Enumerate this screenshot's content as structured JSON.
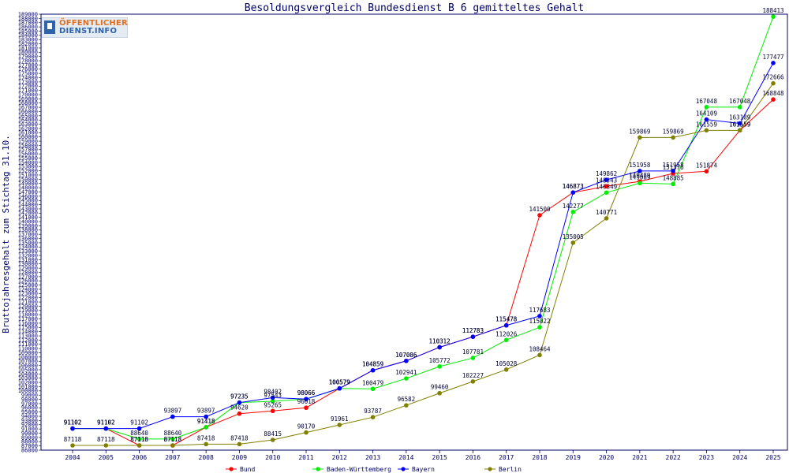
{
  "chart_data": {
    "type": "line",
    "title": "Besoldungsvergleich Bundesdienst B 6 gemitteltes Gehalt",
    "ylabel": "Bruttojahresgehalt zum Stichtag 31.10.",
    "xlabel": "",
    "ylim": [
      86000,
      189000
    ],
    "y_tick_step": 1000,
    "grid": false,
    "legend_position": "bottom",
    "categories": [
      "2004",
      "2005",
      "2006",
      "2007",
      "2008",
      "2009",
      "2010",
      "2011",
      "2012",
      "2013",
      "2014",
      "2015",
      "2016",
      "2017",
      "2018",
      "2019",
      "2020",
      "2021",
      "2022",
      "2023",
      "2024",
      "2025"
    ],
    "series": [
      {
        "name": "Bund",
        "color": "#ff0000",
        "values": [
          91102,
          91102,
          87118,
          87118,
          91418,
          94620,
          95265,
          96018,
          100579,
          104859,
          107086,
          110312,
          112783,
          115478,
          141500,
          146873,
          148343,
          149489,
          151378,
          151874,
          161559,
          168848
        ]
      },
      {
        "name": "Baden-Württemberg",
        "color": "#00ee00",
        "values": [
          91102,
          91102,
          88640,
          88640,
          91418,
          97235,
          97543,
          98066,
          100579,
          100479,
          102941,
          105772,
          107781,
          112026,
          115022,
          142277,
          146849,
          149089,
          148885,
          167048,
          167048,
          188413
        ]
      },
      {
        "name": "Bayern",
        "color": "#0000ff",
        "values": [
          91102,
          91102,
          91102,
          93897,
          93897,
          97235,
          98402,
          98066,
          100579,
          104859,
          107086,
          110312,
          112783,
          115478,
          117683,
          146873,
          149862,
          151958,
          151958,
          164109,
          163189,
          177477
        ]
      },
      {
        "name": "Berlin",
        "color": "#808000",
        "values": [
          87118,
          87118,
          87118,
          87118,
          87418,
          87418,
          88415,
          90170,
          91961,
          93787,
          96582,
          99460,
          102227,
          105028,
          108464,
          135005,
          140771,
          159869,
          159869,
          161559,
          161559,
          172666
        ]
      }
    ],
    "point_labels": [
      {
        "series": "Bund",
        "values": [
          91102,
          91102,
          87118,
          87118,
          91418,
          94620,
          95265,
          96018,
          100579,
          104859,
          107086,
          110312,
          112783,
          115478,
          141500,
          146873,
          148343,
          149489,
          151378,
          151874,
          161559,
          168848
        ]
      },
      {
        "series": "Baden-Württemberg",
        "values": [
          91102,
          91102,
          88640,
          88640,
          91418,
          97235,
          97543,
          98066,
          100579,
          100479,
          102941,
          105772,
          107781,
          112026,
          115022,
          142277,
          146849,
          149089,
          148885,
          167048,
          167048,
          188413
        ]
      },
      {
        "series": "Bayern",
        "values": [
          91102,
          91102,
          91102,
          93897,
          93897,
          97235,
          98402,
          98066,
          100579,
          104859,
          107086,
          110312,
          112783,
          115478,
          117683,
          146873,
          149862,
          151958,
          151958,
          164109,
          163189,
          177477
        ]
      },
      {
        "series": "Berlin",
        "values": [
          87118,
          87118,
          87118,
          87118,
          87418,
          87418,
          88415,
          90170,
          91961,
          93787,
          96582,
          99460,
          102227,
          105028,
          108464,
          135005,
          140771,
          159869,
          159869,
          161559,
          161559,
          172666
        ]
      }
    ]
  },
  "logo": {
    "line1": "ÖFFENTLICHER",
    "line2": "DIENST.INFO"
  }
}
